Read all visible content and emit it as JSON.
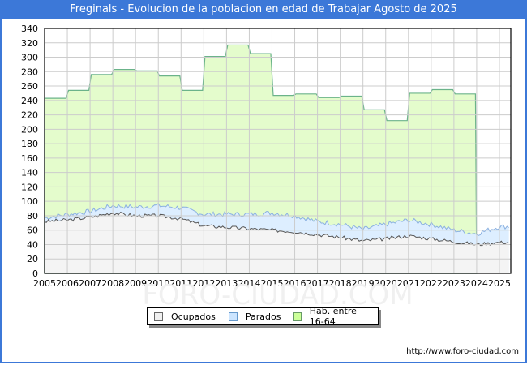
{
  "title": "Freginals - Evolucion de la poblacion en edad de Trabajar Agosto de 2025",
  "footer_url": "http://www.foro-ciudad.com",
  "watermark": "FORO-CIUDAD.COM",
  "legend": [
    {
      "label": "Ocupados",
      "color": "#f0f0f0",
      "border": "#666666"
    },
    {
      "label": "Parados",
      "color": "#cce5ff",
      "border": "#6699cc"
    },
    {
      "label": "Hab. entre 16-64",
      "color": "#ccff99",
      "border": "#669966"
    }
  ],
  "colors": {
    "title_bg": "#3c78d8",
    "hab_fill": "#e4fccc",
    "hab_line": "#6bb38a",
    "parados_fill": "#ddeeff",
    "parados_line": "#8ab0e0",
    "ocupados_fill": "#f4f4f4",
    "ocupados_line": "#555555",
    "grid": "#cccccc"
  },
  "chart_data": {
    "type": "area",
    "title": "Freginals - Evolucion de la poblacion en edad de Trabajar Agosto de 2025",
    "xlabel": "",
    "ylabel": "",
    "ylim": [
      0,
      340
    ],
    "yticks": [
      0,
      20,
      40,
      60,
      80,
      100,
      120,
      140,
      160,
      180,
      200,
      220,
      240,
      260,
      280,
      300,
      320,
      340
    ],
    "xticks": [
      "2005",
      "2006",
      "2007",
      "2008",
      "2009",
      "2010",
      "2011",
      "2012",
      "2013",
      "2014",
      "2015",
      "2016",
      "2017",
      "2018",
      "2019",
      "2020",
      "2021",
      "2022",
      "2023",
      "2024",
      "2025"
    ],
    "grid": true,
    "legend_position": "bottom",
    "series": [
      {
        "name": "Hab. entre 16-64",
        "x": [
          2005,
          2006,
          2007,
          2008,
          2009,
          2010,
          2011,
          2012,
          2013,
          2014,
          2015,
          2016,
          2017,
          2018,
          2019,
          2020,
          2021,
          2022,
          2023
        ],
        "values": [
          243,
          254,
          276,
          283,
          281,
          274,
          254,
          301,
          317,
          305,
          247,
          249,
          244,
          246,
          227,
          212,
          250,
          255,
          249
        ]
      },
      {
        "name": "Parados",
        "x": [
          2005,
          2006,
          2007,
          2008,
          2009,
          2010,
          2011,
          2012,
          2013,
          2014,
          2015,
          2016,
          2017,
          2018,
          2019,
          2020,
          2021,
          2022,
          2023,
          2024,
          2025
        ],
        "values": [
          5,
          8,
          8,
          10,
          12,
          14,
          15,
          16,
          18,
          20,
          24,
          22,
          18,
          18,
          16,
          20,
          22,
          20,
          16,
          15,
          22
        ]
      },
      {
        "name": "Ocupados",
        "x": [
          2005,
          2006,
          2007,
          2008,
          2009,
          2010,
          2011,
          2012,
          2013,
          2014,
          2015,
          2016,
          2017,
          2018,
          2019,
          2020,
          2021,
          2022,
          2023,
          2024,
          2025
        ],
        "values": [
          72,
          74,
          78,
          84,
          80,
          80,
          76,
          66,
          64,
          62,
          60,
          58,
          54,
          50,
          45,
          48,
          52,
          48,
          44,
          40,
          43
        ]
      }
    ],
    "total_active_upper": [
      77,
      82,
      86,
      94,
      92,
      94,
      91,
      82,
      82,
      82,
      84,
      80,
      72,
      68,
      61,
      68,
      74,
      68,
      60,
      55,
      65
    ]
  }
}
